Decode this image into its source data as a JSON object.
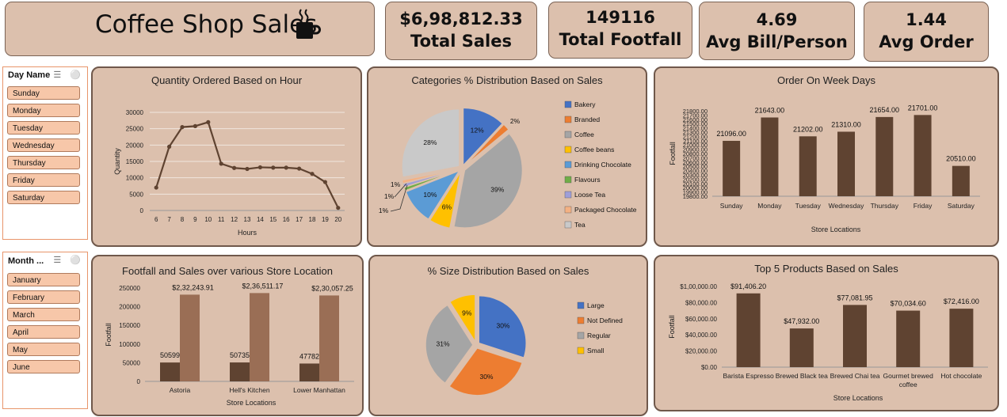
{
  "header": {
    "title": "Coffee Shop Sales",
    "cup_icon": "coffee-cup-icon"
  },
  "kpis": [
    {
      "value": "$6,98,812.33",
      "label": "Total Sales"
    },
    {
      "value": "149116",
      "label": "Total Footfall"
    },
    {
      "value": "4.69",
      "label": "Avg Bill/Person"
    },
    {
      "value": "1.44",
      "label": "Avg Order"
    }
  ],
  "slicers": {
    "day": {
      "title": "Day Name",
      "items": [
        "Sunday",
        "Monday",
        "Tuesday",
        "Wednesday",
        "Thursday",
        "Friday",
        "Saturday"
      ]
    },
    "month": {
      "title": "Month ...",
      "items": [
        "January",
        "February",
        "March",
        "April",
        "May",
        "June"
      ]
    }
  },
  "colors": {
    "bar_dark": "#5f4331",
    "bar_light": "#9a6e55",
    "panel_bg": "#dcc0ad"
  },
  "chart_data": [
    {
      "id": "hourly",
      "type": "line",
      "title": "Quantity Ordered Based on Hour",
      "xlabel": "Hours",
      "ylabel": "Quantity",
      "ylim": [
        0,
        30000
      ],
      "yticks": [
        "0",
        "5000",
        "10000",
        "15000",
        "20000",
        "25000",
        "30000"
      ],
      "x": [
        "6",
        "7",
        "8",
        "9",
        "10",
        "11",
        "12",
        "13",
        "14",
        "15",
        "16",
        "17",
        "18",
        "19",
        "20"
      ],
      "values": [
        7000,
        19500,
        25500,
        25800,
        27000,
        14300,
        13000,
        12700,
        13200,
        13100,
        13100,
        12800,
        11200,
        8700,
        800
      ],
      "grid": true
    },
    {
      "id": "categories",
      "type": "pie",
      "title": "Categories % Distribution Based on Sales",
      "legend_position": "right",
      "labels": [
        "Bakery",
        "Branded",
        "Coffee",
        "Coffee beans",
        "Drinking Chocolate",
        "Flavours",
        "Loose Tea",
        "Packaged Chocolate",
        "Tea"
      ],
      "values": [
        12,
        2,
        39,
        6,
        10,
        1,
        1,
        1,
        28
      ],
      "slice_labels": [
        "12%",
        "2%",
        "39%",
        "6%",
        "10%",
        "1%",
        "1%",
        "1%",
        "28%"
      ],
      "colors": [
        "#4472c4",
        "#ed7d31",
        "#a5a5a5",
        "#ffc000",
        "#5b9bd5",
        "#70ad47",
        "#9e9ed8",
        "#f4b183",
        "#c9c9c9"
      ]
    },
    {
      "id": "weekdays",
      "type": "bar",
      "title": "Order On Week Days",
      "xlabel": "Store Locations",
      "ylabel": "Footfall",
      "ylim": [
        19800,
        21800
      ],
      "yticks": [
        "19800.00",
        "19900.00",
        "20000.00",
        "20100.00",
        "20200.00",
        "20300.00",
        "20400.00",
        "20500.00",
        "20600.00",
        "20700.00",
        "20800.00",
        "20900.00",
        "21000.00",
        "21100.00",
        "21200.00",
        "21300.00",
        "21400.00",
        "21500.00",
        "21600.00",
        "21700.00",
        "21800.00"
      ],
      "categories": [
        "Sunday",
        "Monday",
        "Tuesday",
        "Wednesday",
        "Thursday",
        "Friday",
        "Saturday"
      ],
      "values": [
        21096,
        21643,
        21202,
        21310,
        21654,
        21701,
        20510
      ],
      "data_labels": [
        "21096.00",
        "21643.00",
        "21202.00",
        "21310.00",
        "21654.00",
        "21701.00",
        "20510.00"
      ]
    },
    {
      "id": "stores",
      "type": "bar",
      "title": "Footfall and Sales over various Store Location",
      "xlabel": "Store Locations",
      "ylabel": "Footfall",
      "ylim": [
        0,
        250000
      ],
      "yticks": [
        "0",
        "50000",
        "100000",
        "150000",
        "200000",
        "250000"
      ],
      "categories": [
        "Astoria",
        "Hell's Kitchen",
        "Lower Manhattan"
      ],
      "series": [
        {
          "values": [
            50599,
            50735,
            47782
          ],
          "data_labels": [
            "50599",
            "50735",
            "47782"
          ]
        },
        {
          "values": [
            232243.91,
            236511.17,
            230057.25
          ],
          "data_labels": [
            "$2,32,243.91",
            "$2,36,511.17",
            "$2,30,057.25"
          ]
        }
      ]
    },
    {
      "id": "sizes",
      "type": "pie",
      "title": "% Size Distribution Based on Sales",
      "legend_position": "right",
      "labels": [
        "Large",
        "Not Defined",
        "Regular",
        "Small"
      ],
      "values": [
        30,
        30,
        31,
        9
      ],
      "slice_labels": [
        "30%",
        "30%",
        "31%",
        "9%"
      ],
      "colors": [
        "#4472c4",
        "#ed7d31",
        "#a5a5a5",
        "#ffc000"
      ]
    },
    {
      "id": "products",
      "type": "bar",
      "title": "Top 5 Products Based on Sales",
      "xlabel": "Store Locations",
      "ylabel": "Footfall",
      "ylim": [
        0,
        100000
      ],
      "yticks": [
        "$0.00",
        "$20,000.00",
        "$40,000.00",
        "$60,000.00",
        "$80,000.00",
        "$1,00,000.00"
      ],
      "categories": [
        [
          "Barista Espresso"
        ],
        [
          "Brewed Black tea"
        ],
        [
          "Brewed Chai tea"
        ],
        [
          "Gourmet brewed",
          "coffee"
        ],
        [
          "Hot chocolate"
        ]
      ],
      "values": [
        91406.2,
        47932.0,
        77081.95,
        70034.6,
        72416.0
      ],
      "data_labels": [
        "$91,406.20",
        "$47,932.00",
        "$77,081.95",
        "$70,034.60",
        "$72,416.00"
      ]
    }
  ]
}
